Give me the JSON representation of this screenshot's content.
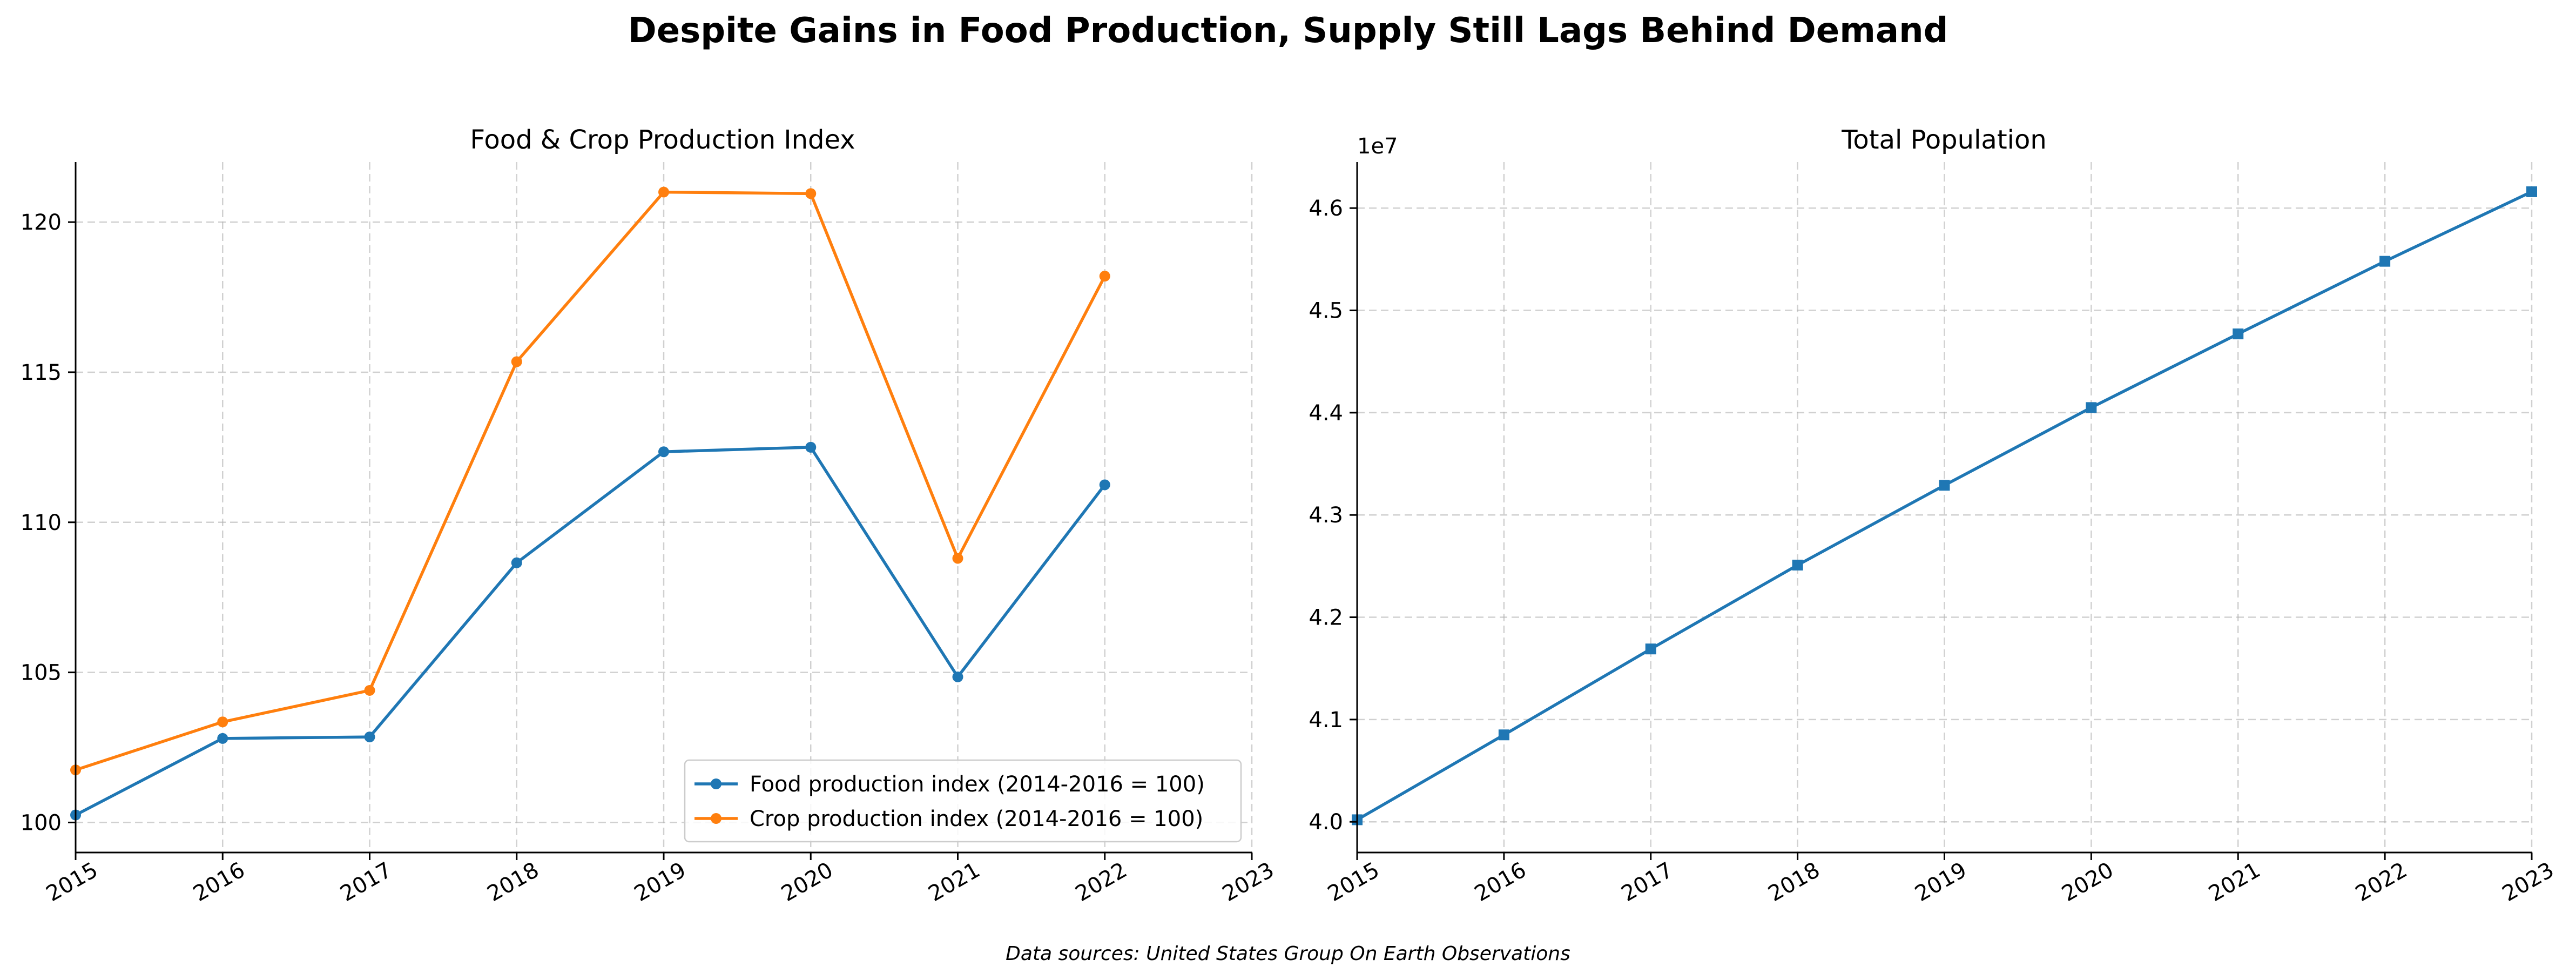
{
  "figure": {
    "suptitle": "Despite Gains in Food Production, Supply Still Lags Behind Demand",
    "footnote": "Data sources: United States Group On Earth Observations"
  },
  "chart_data": [
    {
      "type": "line",
      "title": "Food & Crop Production Index",
      "xlabel": "",
      "ylabel": "",
      "x": [
        2015,
        2016,
        2017,
        2018,
        2019,
        2020,
        2021,
        2022
      ],
      "xlim": [
        2015,
        2023
      ],
      "xticks": [
        2015,
        2016,
        2017,
        2018,
        2019,
        2020,
        2021,
        2022,
        2023
      ],
      "ylim": [
        99,
        122
      ],
      "yticks": [
        100,
        105,
        110,
        115,
        120
      ],
      "grid": true,
      "legend": "lower-right",
      "series": [
        {
          "name": "Food production index (2014-2016 = 100)",
          "color": "#1f77b4",
          "marker": "circle",
          "values": [
            100.25,
            102.8,
            102.85,
            108.65,
            112.35,
            112.5,
            104.85,
            111.25
          ]
        },
        {
          "name": "Crop production index (2014-2016 = 100)",
          "color": "#ff7f0e",
          "marker": "circle",
          "values": [
            101.75,
            103.35,
            104.4,
            115.35,
            121.0,
            120.95,
            108.8,
            118.2
          ]
        }
      ]
    },
    {
      "type": "line",
      "title": "Total Population",
      "xlabel": "",
      "ylabel": "",
      "x": [
        2015,
        2016,
        2017,
        2018,
        2019,
        2020,
        2021,
        2022,
        2023
      ],
      "xlim": [
        2015,
        2023
      ],
      "xticks": [
        2015,
        2016,
        2017,
        2018,
        2019,
        2020,
        2021,
        2022,
        2023
      ],
      "ylim": [
        39700000,
        46450000
      ],
      "yticks": [
        40000000,
        41000000,
        42000000,
        43000000,
        44000000,
        45000000,
        46000000
      ],
      "ytick_labels": [
        "4.0",
        "4.1",
        "4.2",
        "4.3",
        "4.4",
        "4.5",
        "4.6"
      ],
      "y_offset_label": "1e7",
      "grid": true,
      "series": [
        {
          "name": "",
          "color": "#1f77b4",
          "marker": "square",
          "values": [
            40020000,
            40850000,
            41690000,
            42510000,
            43290000,
            44050000,
            44770000,
            45480000,
            46160000
          ]
        }
      ]
    }
  ]
}
